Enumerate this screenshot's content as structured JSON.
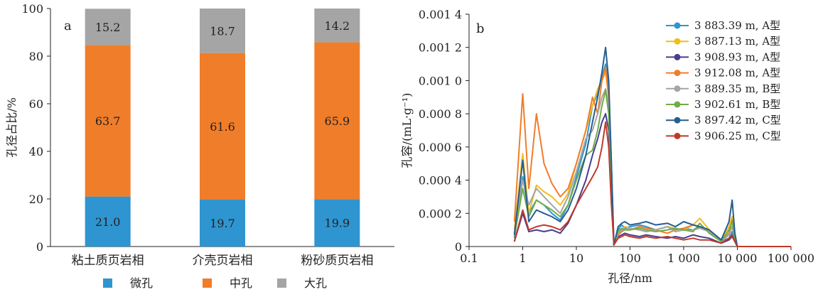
{
  "chart_data": [
    {
      "panel_label": "a",
      "type": "bar",
      "stacked": true,
      "ylabel": "孔径占比/%",
      "ylim": [
        0,
        100
      ],
      "yticks": [
        "0",
        "20",
        "40",
        "60",
        "80",
        "100"
      ],
      "categories": [
        "粘土质页岩相",
        "介壳页岩相",
        "粉砂质页岩相"
      ],
      "series": [
        {
          "name": "微孔",
          "color": "#2e95d0",
          "values": [
            21.0,
            19.7,
            19.9
          ],
          "labels": [
            "21.0",
            "19.7",
            "19.9"
          ]
        },
        {
          "name": "中孔",
          "color": "#f07d2a",
          "values": [
            63.7,
            61.6,
            65.9
          ],
          "labels": [
            "63.7",
            "61.6",
            "65.9"
          ]
        },
        {
          "name": "大孔",
          "color": "#a5a5a5",
          "values": [
            15.2,
            18.7,
            14.2
          ],
          "labels": [
            "15.2",
            "18.7",
            "14.2"
          ]
        }
      ],
      "legend_position": "bottom",
      "grid": false
    },
    {
      "panel_label": "b",
      "type": "line",
      "xscale": "log",
      "xlabel": "孔径/nm",
      "ylabel": "孔容/(mL·g⁻¹)",
      "xlim": [
        0.1,
        100000
      ],
      "ylim": [
        0,
        0.0014
      ],
      "xticks": [
        "0.1",
        "1",
        "10",
        "100",
        "1 000",
        "10 000",
        "100 000"
      ],
      "yticks": [
        "0",
        "0.000 2",
        "0.000 4",
        "0.000 6",
        "0.000 8",
        "0.001 0",
        "0.001 2",
        "0.001 4"
      ],
      "legend_position": "top-right",
      "grid": false,
      "series": [
        {
          "name": "3 883.39 m, A型",
          "color": "#2e95d0",
          "x": [
            0.7,
            1,
            1.3,
            1.8,
            2.5,
            3.5,
            5,
            7,
            10,
            15,
            20,
            25,
            30,
            35,
            40,
            45,
            50,
            60,
            70,
            80,
            100,
            150,
            200,
            300,
            500,
            700,
            1000,
            1500,
            2000,
            3000,
            5000,
            7000,
            8000,
            9000,
            10000,
            20000,
            50000,
            100000
          ],
          "y": [
            5e-05,
            0.00042,
            0.0002,
            0.00028,
            0.00025,
            0.0002,
            0.00016,
            0.00025,
            0.00042,
            0.00062,
            0.00085,
            0.00092,
            0.00102,
            0.0011,
            0.00095,
            0.0005,
            1e-05,
            0.0001,
            0.00013,
            0.00011,
            0.00012,
            0.00013,
            0.00012,
            0.0001,
            0.00012,
            0.0001,
            0.00011,
            0.0001,
            0.00012,
            0.0001,
            3e-05,
            5e-05,
            9e-05,
            4e-05,
            0,
            0,
            0,
            0
          ]
        },
        {
          "name": "3 887.13 m, A型",
          "color": "#f2bd1d",
          "x": [
            0.7,
            1,
            1.3,
            1.8,
            2.5,
            3.5,
            5,
            7,
            10,
            15,
            20,
            25,
            30,
            35,
            40,
            45,
            50,
            60,
            70,
            80,
            100,
            150,
            200,
            300,
            500,
            700,
            1000,
            1500,
            2000,
            3000,
            5000,
            7000,
            8000,
            9000,
            10000,
            20000,
            50000,
            100000
          ],
          "y": [
            0.0001,
            0.00056,
            0.0002,
            0.00037,
            0.00033,
            0.0003,
            0.00025,
            0.00032,
            0.0005,
            0.0007,
            0.00085,
            0.00095,
            0.001,
            0.00105,
            0.0009,
            0.00045,
            1e-05,
            8e-05,
            0.0001,
            0.00012,
            0.00011,
            0.0001,
            9e-05,
            0.0001,
            0.00012,
            0.00011,
            0.0001,
            0.00013,
            0.00017,
            0.0001,
            4e-05,
            0.00012,
            0.00018,
            8e-05,
            0,
            0,
            0,
            0
          ]
        },
        {
          "name": "3 908.93 m, A型",
          "color": "#4a3d8f",
          "x": [
            0.7,
            1,
            1.3,
            1.8,
            2.5,
            3.5,
            5,
            7,
            10,
            15,
            20,
            25,
            30,
            35,
            40,
            45,
            50,
            60,
            70,
            80,
            100,
            150,
            200,
            300,
            500,
            700,
            1000,
            1500,
            2000,
            3000,
            5000,
            7000,
            8000,
            9000,
            10000,
            20000,
            50000,
            100000
          ],
          "y": [
            3e-05,
            0.0002,
            9e-05,
            0.0001,
            9e-05,
            0.0001,
            8e-05,
            0.00014,
            0.00025,
            0.0004,
            0.00055,
            0.00065,
            0.00075,
            0.0008,
            0.0007,
            0.0003,
            1e-05,
            6e-05,
            7e-05,
            8e-05,
            7e-05,
            6e-05,
            7e-05,
            6e-05,
            5e-05,
            6e-05,
            5e-05,
            7e-05,
            6e-05,
            5e-05,
            2e-05,
            4e-05,
            6e-05,
            3e-05,
            0,
            0,
            0,
            0
          ]
        },
        {
          "name": "3 912.08 m, A型",
          "color": "#f07d2a",
          "x": [
            0.7,
            1,
            1.3,
            1.8,
            2.5,
            3.5,
            5,
            7,
            10,
            15,
            20,
            25,
            30,
            35,
            40,
            45,
            50,
            60,
            70,
            80,
            100,
            150,
            200,
            300,
            500,
            700,
            1000,
            1500,
            2000,
            3000,
            5000,
            7000,
            8000,
            9000,
            10000,
            20000,
            50000,
            100000
          ],
          "y": [
            0.00015,
            0.00092,
            0.00035,
            0.0008,
            0.0005,
            0.00038,
            0.0003,
            0.00035,
            0.0005,
            0.0007,
            0.0009,
            0.0008,
            0.001,
            0.00108,
            0.0009,
            0.00045,
            1e-05,
            7e-05,
            9e-05,
            0.0001,
            0.0001,
            0.00012,
            0.00011,
            0.0001,
            8e-05,
            0.0001,
            0.00011,
            0.00013,
            0.00012,
            0.0001,
            3e-05,
            8e-05,
            0.00016,
            6e-05,
            0,
            0,
            0,
            0
          ]
        },
        {
          "name": "3 889.35 m, B型",
          "color": "#a5a5a5",
          "x": [
            0.7,
            1,
            1.3,
            1.8,
            2.5,
            3.5,
            5,
            7,
            10,
            15,
            20,
            25,
            30,
            35,
            40,
            45,
            50,
            60,
            70,
            80,
            100,
            150,
            200,
            300,
            500,
            700,
            1000,
            1500,
            2000,
            3000,
            5000,
            7000,
            8000,
            9000,
            10000,
            20000,
            50000,
            100000
          ],
          "y": [
            8e-05,
            0.0004,
            0.00025,
            0.00035,
            0.0003,
            0.00025,
            0.0002,
            0.0003,
            0.00045,
            0.00065,
            0.0007,
            0.0008,
            0.0009,
            0.00095,
            0.00085,
            0.0004,
            1e-05,
            8e-05,
            0.0001,
            0.0001,
            0.00011,
            0.0001,
            9e-05,
            0.0001,
            0.00012,
            9e-05,
            0.0001,
            0.0001,
            0.00011,
            9e-05,
            3e-05,
            7e-05,
            0.00012,
            5e-05,
            0,
            0,
            0,
            0
          ]
        },
        {
          "name": "3 902.61 m, B型",
          "color": "#70ad47",
          "x": [
            0.7,
            1,
            1.3,
            1.8,
            2.5,
            3.5,
            5,
            7,
            10,
            15,
            20,
            25,
            30,
            35,
            40,
            45,
            50,
            60,
            70,
            80,
            100,
            150,
            200,
            300,
            500,
            700,
            1000,
            1500,
            2000,
            3000,
            5000,
            7000,
            8000,
            9000,
            10000,
            20000,
            50000,
            100000
          ],
          "y": [
            6e-05,
            0.00035,
            0.00018,
            0.00028,
            0.00025,
            0.00022,
            0.00018,
            0.00025,
            0.0004,
            0.00055,
            0.00058,
            0.0007,
            0.00085,
            0.00094,
            0.0008,
            0.00035,
            1e-05,
            9e-05,
            0.00011,
            0.0001,
            0.0001,
            0.00011,
            0.0001,
            9e-05,
            0.0001,
            0.00011,
            0.0001,
            9e-05,
            0.00014,
            8e-05,
            3e-05,
            0.0001,
            0.00015,
            5e-05,
            0,
            0,
            0,
            0
          ]
        },
        {
          "name": "3 897.42 m, C型",
          "color": "#255e91",
          "x": [
            0.7,
            1,
            1.3,
            1.8,
            2.5,
            3.5,
            5,
            7,
            10,
            15,
            20,
            25,
            30,
            35,
            40,
            45,
            50,
            60,
            70,
            80,
            100,
            150,
            200,
            300,
            500,
            700,
            1000,
            1500,
            2000,
            3000,
            5000,
            7000,
            8000,
            9000,
            10000,
            20000,
            50000,
            100000
          ],
          "y": [
            7e-05,
            0.00052,
            0.00015,
            0.00022,
            0.0002,
            0.00018,
            0.00015,
            0.00022,
            0.00035,
            0.00055,
            0.00075,
            0.0009,
            0.00105,
            0.0012,
            0.001,
            0.0005,
            1e-05,
            0.00012,
            0.00014,
            0.00015,
            0.00013,
            0.00014,
            0.00015,
            0.00013,
            0.00014,
            0.00012,
            0.00015,
            0.00013,
            0.00012,
            0.0001,
            4e-05,
            0.00015,
            0.00028,
            8e-05,
            0,
            0,
            0,
            0
          ]
        },
        {
          "name": "3 906.25 m, C型",
          "color": "#c0392b",
          "x": [
            0.7,
            1,
            1.3,
            1.8,
            2.5,
            3.5,
            5,
            7,
            10,
            15,
            20,
            25,
            30,
            35,
            40,
            45,
            50,
            60,
            70,
            80,
            100,
            150,
            200,
            300,
            500,
            700,
            1000,
            1500,
            2000,
            3000,
            5000,
            7000,
            8000,
            9000,
            10000,
            20000,
            50000,
            100000
          ],
          "y": [
            3e-05,
            0.00022,
            0.0001,
            0.00012,
            0.00013,
            0.00012,
            0.0001,
            0.00015,
            0.00025,
            0.00035,
            0.00042,
            0.00048,
            0.0006,
            0.00075,
            0.0006,
            0.00025,
            1e-05,
            5e-05,
            6e-05,
            7e-05,
            6e-05,
            5e-05,
            6e-05,
            5e-05,
            6e-05,
            5e-05,
            4e-05,
            5e-05,
            4e-05,
            4e-05,
            2e-05,
            5e-05,
            7e-05,
            3e-05,
            0,
            0,
            0,
            0
          ]
        }
      ]
    }
  ]
}
